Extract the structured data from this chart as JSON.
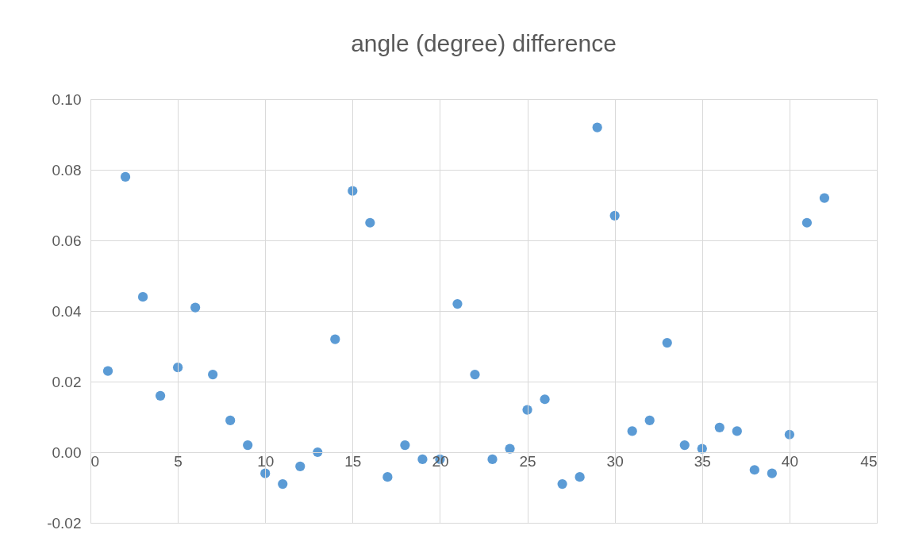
{
  "chart_data": {
    "type": "scatter",
    "title": "angle (degree) difference",
    "x": [
      1,
      2,
      3,
      4,
      5,
      6,
      7,
      8,
      9,
      10,
      11,
      12,
      13,
      14,
      15,
      16,
      17,
      18,
      19,
      20,
      21,
      22,
      23,
      24,
      25,
      26,
      27,
      28,
      29,
      30,
      31,
      32,
      33,
      34,
      35,
      36,
      37,
      38,
      39,
      40,
      41,
      42
    ],
    "series": [
      {
        "color": "#5b9bd5",
        "values": [
          0.023,
          0.078,
          0.044,
          0.016,
          0.024,
          0.041,
          0.022,
          0.009,
          0.002,
          -0.006,
          -0.009,
          -0.004,
          0.0,
          0.032,
          0.074,
          0.065,
          -0.007,
          0.002,
          -0.002,
          -0.002,
          0.042,
          0.022,
          -0.002,
          0.001,
          0.012,
          0.015,
          -0.009,
          -0.007,
          0.092,
          0.067,
          0.006,
          0.009,
          0.031,
          0.002,
          0.001,
          0.007,
          0.006,
          -0.005,
          -0.006,
          0.005,
          0.065,
          0.072
        ]
      }
    ],
    "xlim": [
      0,
      45
    ],
    "xticks": [
      0,
      5,
      10,
      15,
      20,
      25,
      30,
      35,
      40,
      45
    ],
    "ylim": [
      -0.02,
      0.1
    ],
    "yticks": [
      {
        "value": -0.02,
        "label": "-0.02"
      },
      {
        "value": 0,
        "label": "0.00"
      },
      {
        "value": 0.02,
        "label": "0.02"
      },
      {
        "value": 0.04,
        "label": "0.04"
      },
      {
        "value": 0.06,
        "label": "0.06"
      },
      {
        "value": 0.08,
        "label": "0.08"
      },
      {
        "value": 0.1,
        "label": "0.10"
      }
    ],
    "grid": true,
    "marker": "circle"
  }
}
